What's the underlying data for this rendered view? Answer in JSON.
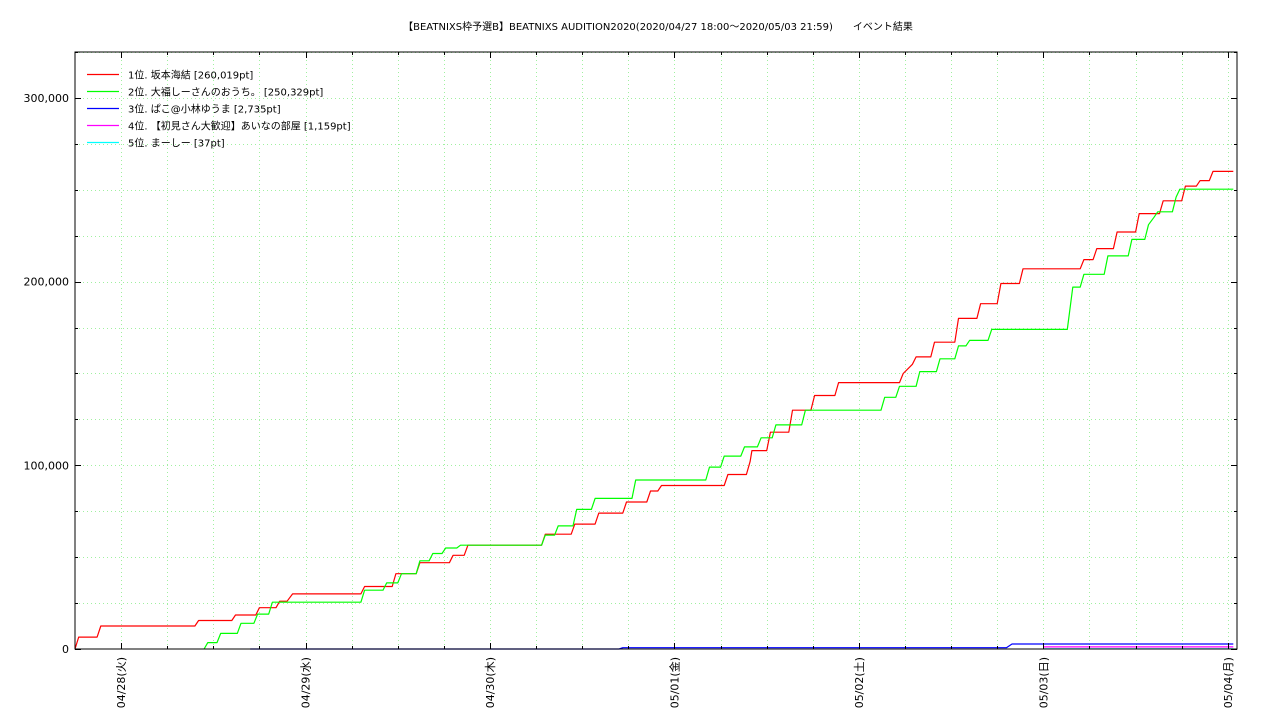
{
  "chart_data": {
    "type": "line",
    "title": "【BEATNIXS枠予選B】BEATNIXS AUDITION2020(2020/04/27 18:00〜2020/05/03 21:59)　　イベント結果",
    "xlabel": "",
    "ylabel": "",
    "ylim": [
      0,
      325000
    ],
    "yticks": [
      0,
      100000,
      200000,
      300000
    ],
    "ytick_labels": [
      "0",
      "100,000",
      "200,000",
      "300,000"
    ],
    "xticks": [
      1,
      2,
      3,
      4,
      5,
      6,
      7
    ],
    "xtick_labels": [
      "04/28(火)",
      "04/29(水)",
      "04/30(木)",
      "05/01(金)",
      "05/02(土)",
      "05/03(日)",
      "05/04(月)"
    ],
    "xlim": [
      0.75,
      7.05
    ],
    "x_unit": "days since 2020/04/27 00:00",
    "grid": true,
    "legend_position": "top-left",
    "series": [
      {
        "name": "1位. 坂本海結 [260,019pt]",
        "color": "#ff0000",
        "points": [
          [
            0.75,
            0
          ],
          [
            0.77,
            6500
          ],
          [
            0.87,
            6500
          ],
          [
            0.89,
            12500
          ],
          [
            1.4,
            12500
          ],
          [
            1.42,
            15500
          ],
          [
            1.6,
            15500
          ],
          [
            1.62,
            18500
          ],
          [
            1.73,
            18500
          ],
          [
            1.75,
            22500
          ],
          [
            1.84,
            22500
          ],
          [
            1.86,
            26000
          ],
          [
            1.9,
            26000
          ],
          [
            1.93,
            30000
          ],
          [
            2.3,
            30000
          ],
          [
            2.32,
            34000
          ],
          [
            2.47,
            34000
          ],
          [
            2.49,
            41000
          ],
          [
            2.6,
            41000
          ],
          [
            2.62,
            47000
          ],
          [
            2.78,
            47000
          ],
          [
            2.8,
            51000
          ],
          [
            2.86,
            51000
          ],
          [
            2.88,
            56500
          ],
          [
            3.28,
            56500
          ],
          [
            3.3,
            62500
          ],
          [
            3.44,
            62500
          ],
          [
            3.46,
            68000
          ],
          [
            3.57,
            68000
          ],
          [
            3.59,
            74000
          ],
          [
            3.72,
            74000
          ],
          [
            3.74,
            80000
          ],
          [
            3.85,
            80000
          ],
          [
            3.87,
            86000
          ],
          [
            3.91,
            86000
          ],
          [
            3.93,
            89000
          ],
          [
            4.27,
            89000
          ],
          [
            4.29,
            95000
          ],
          [
            4.39,
            95000
          ],
          [
            4.41,
            102000
          ],
          [
            4.42,
            108000
          ],
          [
            4.5,
            108000
          ],
          [
            4.52,
            118000
          ],
          [
            4.62,
            118000
          ],
          [
            4.64,
            130000
          ],
          [
            4.74,
            130000
          ],
          [
            4.76,
            138000
          ],
          [
            4.87,
            138000
          ],
          [
            4.89,
            145000
          ],
          [
            5.22,
            145000
          ],
          [
            5.24,
            150000
          ],
          [
            5.29,
            155000
          ],
          [
            5.31,
            159000
          ],
          [
            5.39,
            159000
          ],
          [
            5.41,
            167000
          ],
          [
            5.52,
            167000
          ],
          [
            5.54,
            180000
          ],
          [
            5.64,
            180000
          ],
          [
            5.66,
            188000
          ],
          [
            5.75,
            188000
          ],
          [
            5.77,
            199000
          ],
          [
            5.87,
            199000
          ],
          [
            5.89,
            207000
          ],
          [
            6.2,
            207000
          ],
          [
            6.22,
            212000
          ],
          [
            6.27,
            212000
          ],
          [
            6.29,
            218000
          ],
          [
            6.38,
            218000
          ],
          [
            6.4,
            227000
          ],
          [
            6.5,
            227000
          ],
          [
            6.52,
            237000
          ],
          [
            6.63,
            237000
          ],
          [
            6.65,
            244000
          ],
          [
            6.75,
            244000
          ],
          [
            6.77,
            252000
          ],
          [
            6.83,
            252000
          ],
          [
            6.85,
            255000
          ],
          [
            6.9,
            255000
          ],
          [
            6.92,
            260019
          ],
          [
            7.03,
            260019
          ]
        ]
      },
      {
        "name": "2位. 大福しーさんのおうち。 [250,329pt]",
        "color": "#00ff00",
        "points": [
          [
            1.45,
            0
          ],
          [
            1.47,
            3500
          ],
          [
            1.52,
            3500
          ],
          [
            1.54,
            8500
          ],
          [
            1.63,
            8500
          ],
          [
            1.65,
            14000
          ],
          [
            1.72,
            14000
          ],
          [
            1.74,
            19000
          ],
          [
            1.8,
            19000
          ],
          [
            1.82,
            25500
          ],
          [
            2.3,
            25500
          ],
          [
            2.32,
            32000
          ],
          [
            2.42,
            32000
          ],
          [
            2.44,
            36000
          ],
          [
            2.5,
            36000
          ],
          [
            2.52,
            41000
          ],
          [
            2.6,
            41000
          ],
          [
            2.62,
            48000
          ],
          [
            2.67,
            48000
          ],
          [
            2.69,
            52000
          ],
          [
            2.74,
            52000
          ],
          [
            2.76,
            55000
          ],
          [
            2.82,
            55000
          ],
          [
            2.84,
            56500
          ],
          [
            3.28,
            56500
          ],
          [
            3.3,
            62000
          ],
          [
            3.35,
            62000
          ],
          [
            3.37,
            67000
          ],
          [
            3.45,
            67000
          ],
          [
            3.47,
            76000
          ],
          [
            3.55,
            76000
          ],
          [
            3.57,
            82000
          ],
          [
            3.77,
            82000
          ],
          [
            3.79,
            92000
          ],
          [
            4.17,
            92000
          ],
          [
            4.19,
            99000
          ],
          [
            4.25,
            99000
          ],
          [
            4.27,
            105000
          ],
          [
            4.36,
            105000
          ],
          [
            4.38,
            110000
          ],
          [
            4.45,
            110000
          ],
          [
            4.47,
            115000
          ],
          [
            4.53,
            115000
          ],
          [
            4.55,
            122000
          ],
          [
            4.69,
            122000
          ],
          [
            4.71,
            130000
          ],
          [
            5.12,
            130000
          ],
          [
            5.14,
            137000
          ],
          [
            5.2,
            137000
          ],
          [
            5.22,
            143000
          ],
          [
            5.31,
            143000
          ],
          [
            5.33,
            151000
          ],
          [
            5.42,
            151000
          ],
          [
            5.44,
            158000
          ],
          [
            5.52,
            158000
          ],
          [
            5.54,
            165000
          ],
          [
            5.58,
            165000
          ],
          [
            5.6,
            168000
          ],
          [
            5.7,
            168000
          ],
          [
            5.72,
            174000
          ],
          [
            6.13,
            174000
          ],
          [
            6.16,
            197000
          ],
          [
            6.2,
            197000
          ],
          [
            6.22,
            204000
          ],
          [
            6.33,
            204000
          ],
          [
            6.35,
            214000
          ],
          [
            6.46,
            214000
          ],
          [
            6.48,
            223000
          ],
          [
            6.55,
            223000
          ],
          [
            6.57,
            231000
          ],
          [
            6.6,
            235000
          ],
          [
            6.62,
            238000
          ],
          [
            6.7,
            238000
          ],
          [
            6.72,
            246000
          ],
          [
            6.74,
            250329
          ],
          [
            7.03,
            250329
          ]
        ]
      },
      {
        "name": "3位. ぱこ@小林ゆうま [2,735pt]",
        "color": "#0000ff",
        "points": [
          [
            1.7,
            0
          ],
          [
            3.7,
            0
          ],
          [
            3.72,
            700
          ],
          [
            5.8,
            700
          ],
          [
            5.83,
            2735
          ],
          [
            7.03,
            2735
          ]
        ]
      },
      {
        "name": "4位. 【初見さん大歓迎】あいなの部屋 [1,159pt]",
        "color": "#ff00ff",
        "points": [
          [
            6.0,
            1159
          ],
          [
            7.03,
            1159
          ]
        ]
      },
      {
        "name": "5位. まーしー [37pt]",
        "color": "#00ffff",
        "points": [
          [
            6.0,
            37
          ],
          [
            7.03,
            37
          ]
        ]
      }
    ]
  }
}
